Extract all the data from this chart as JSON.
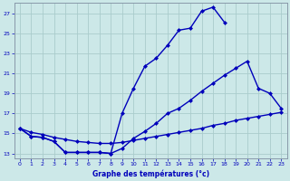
{
  "title": "Graphe des températures (°c)",
  "background_color": "#cce8e8",
  "grid_color": "#aacccc",
  "line_color": "#0000bb",
  "xlim": [
    -0.5,
    23.5
  ],
  "ylim": [
    12.5,
    28.0
  ],
  "xticks": [
    0,
    1,
    2,
    3,
    4,
    5,
    6,
    7,
    8,
    9,
    10,
    11,
    12,
    13,
    14,
    15,
    16,
    17,
    18,
    19,
    20,
    21,
    22,
    23
  ],
  "yticks": [
    13,
    15,
    17,
    19,
    21,
    23,
    25,
    27
  ],
  "line1_x": [
    0,
    1,
    2,
    3,
    4,
    5,
    6,
    7,
    8,
    9,
    10,
    11,
    12,
    13,
    14,
    15,
    16,
    17,
    18
  ],
  "line1_y": [
    15.5,
    14.7,
    14.6,
    14.2,
    13.1,
    13.1,
    13.1,
    13.1,
    13.0,
    17.0,
    19.5,
    21.7,
    22.5,
    23.8,
    25.3,
    25.5,
    27.2,
    27.6,
    26.1
  ],
  "line2_x": [
    0,
    1,
    2,
    3,
    4,
    5,
    6,
    7,
    8,
    9,
    10,
    11,
    12,
    13,
    14,
    15,
    16,
    17,
    18,
    19,
    20,
    21,
    22,
    23
  ],
  "line2_y": [
    15.5,
    14.7,
    14.6,
    14.2,
    13.1,
    13.1,
    13.1,
    13.1,
    13.0,
    13.5,
    14.5,
    15.2,
    16.0,
    17.0,
    17.5,
    18.3,
    19.2,
    20.0,
    20.8,
    21.5,
    22.2,
    19.5,
    19.0,
    17.5
  ],
  "line3_x": [
    0,
    1,
    2,
    3,
    4,
    5,
    6,
    7,
    8,
    9,
    10,
    11,
    12,
    13,
    14,
    15,
    16,
    17,
    18,
    19,
    20,
    21,
    22,
    23
  ],
  "line3_y": [
    15.5,
    15.1,
    14.9,
    14.6,
    14.4,
    14.2,
    14.1,
    14.0,
    14.0,
    14.1,
    14.3,
    14.5,
    14.7,
    14.9,
    15.1,
    15.3,
    15.5,
    15.8,
    16.0,
    16.3,
    16.5,
    16.7,
    16.9,
    17.1
  ],
  "markersize": 2.5,
  "linewidth": 1.0
}
